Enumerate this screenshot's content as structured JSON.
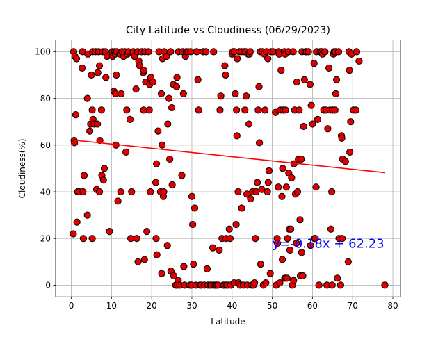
{
  "colors": {
    "marker_fill": "#e00000",
    "marker_edge": "#000000",
    "regression": "#ff0000",
    "equation": "#0000ff",
    "grid": "#b0b0b0"
  },
  "chart_data": {
    "type": "scatter",
    "title": "City Latitude vs Cloudiness (06/29/2023)",
    "xlabel": "Latitude",
    "ylabel": "Cloudiness(%)",
    "xlim": [
      -3.9,
      81.9
    ],
    "ylim": [
      -5,
      105
    ],
    "xticks": [
      0,
      10,
      20,
      30,
      40,
      50,
      60,
      70,
      80
    ],
    "yticks": [
      0,
      20,
      40,
      60,
      80,
      100
    ],
    "grid": true,
    "regression": {
      "slope": -0.18,
      "intercept": 62.23,
      "x_range": [
        0.5,
        78
      ],
      "equation_text": "y=-0.18x + 62.23",
      "label_position": [
        50,
        16
      ]
    },
    "points": [
      [
        0.5,
        22
      ],
      [
        0.6,
        100
      ],
      [
        0.7,
        62
      ],
      [
        0.8,
        61
      ],
      [
        0.9,
        98
      ],
      [
        1.1,
        73
      ],
      [
        1.3,
        97
      ],
      [
        1.4,
        27
      ],
      [
        1.6,
        40
      ],
      [
        2.0,
        40
      ],
      [
        2.7,
        93
      ],
      [
        2.8,
        100
      ],
      [
        2.9,
        40
      ],
      [
        3.0,
        20
      ],
      [
        3.2,
        47
      ],
      [
        4.0,
        30
      ],
      [
        4.0,
        80
      ],
      [
        4.1,
        99
      ],
      [
        4.6,
        66
      ],
      [
        4.8,
        69
      ],
      [
        5.0,
        90
      ],
      [
        5.2,
        75
      ],
      [
        5.2,
        20
      ],
      [
        5.3,
        100
      ],
      [
        5.4,
        71
      ],
      [
        5.7,
        69
      ],
      [
        6.0,
        100
      ],
      [
        6.3,
        41
      ],
      [
        6.5,
        69
      ],
      [
        6.6,
        91
      ],
      [
        6.8,
        100
      ],
      [
        7.0,
        94
      ],
      [
        7.0,
        40
      ],
      [
        7.1,
        62
      ],
      [
        7.5,
        75
      ],
      [
        7.6,
        47
      ],
      [
        7.8,
        100
      ],
      [
        8.0,
        45
      ],
      [
        8.2,
        50
      ],
      [
        8.5,
        100
      ],
      [
        8.6,
        89
      ],
      [
        8.9,
        98
      ],
      [
        9.5,
        23
      ],
      [
        10.2,
        100
      ],
      [
        10.3,
        98
      ],
      [
        10.6,
        83
      ],
      [
        10.8,
        100
      ],
      [
        10.9,
        99
      ],
      [
        11.0,
        82
      ],
      [
        11.1,
        60
      ],
      [
        11.2,
        90
      ],
      [
        11.3,
        100
      ],
      [
        11.6,
        36
      ],
      [
        12.1,
        99
      ],
      [
        12.3,
        40
      ],
      [
        12.4,
        82
      ],
      [
        12.6,
        100
      ],
      [
        13.0,
        98
      ],
      [
        13.3,
        100
      ],
      [
        13.6,
        57
      ],
      [
        13.8,
        75
      ],
      [
        14.0,
        99
      ],
      [
        14.2,
        100
      ],
      [
        14.6,
        71
      ],
      [
        14.8,
        20
      ],
      [
        15.0,
        40
      ],
      [
        15.4,
        100
      ],
      [
        15.7,
        98
      ],
      [
        16.1,
        84
      ],
      [
        16.3,
        20
      ],
      [
        16.5,
        100
      ],
      [
        16.6,
        10
      ],
      [
        16.8,
        96
      ],
      [
        17.0,
        94
      ],
      [
        17.5,
        100
      ],
      [
        17.9,
        91
      ],
      [
        18.0,
        92
      ],
      [
        18.0,
        75
      ],
      [
        18.2,
        11
      ],
      [
        18.3,
        100
      ],
      [
        18.5,
        87
      ],
      [
        18.8,
        23
      ],
      [
        19.2,
        100
      ],
      [
        19.4,
        75
      ],
      [
        19.5,
        86
      ],
      [
        19.7,
        40
      ],
      [
        19.8,
        89
      ],
      [
        20.3,
        87
      ],
      [
        21.0,
        44
      ],
      [
        21.1,
        20
      ],
      [
        21.2,
        52
      ],
      [
        21.3,
        13
      ],
      [
        21.6,
        66
      ],
      [
        21.8,
        100
      ],
      [
        22.2,
        40
      ],
      [
        22.4,
        82
      ],
      [
        22.5,
        5
      ],
      [
        22.6,
        60
      ],
      [
        22.7,
        97
      ],
      [
        22.9,
        38
      ],
      [
        23.0,
        40
      ],
      [
        23.1,
        100
      ],
      [
        23.7,
        98
      ],
      [
        23.9,
        17
      ],
      [
        24.0,
        69
      ],
      [
        24.3,
        80
      ],
      [
        24.5,
        54
      ],
      [
        24.7,
        100
      ],
      [
        24.8,
        6
      ],
      [
        25.0,
        76
      ],
      [
        25.1,
        43
      ],
      [
        25.4,
        86
      ],
      [
        25.5,
        4
      ],
      [
        26.0,
        0
      ],
      [
        26.2,
        85
      ],
      [
        26.3,
        89
      ],
      [
        26.4,
        0
      ],
      [
        26.6,
        2
      ],
      [
        26.7,
        100
      ],
      [
        27.0,
        0
      ],
      [
        27.5,
        47
      ],
      [
        27.7,
        100
      ],
      [
        27.9,
        82
      ],
      [
        28.0,
        8
      ],
      [
        28.2,
        0
      ],
      [
        28.4,
        98
      ],
      [
        28.6,
        100
      ],
      [
        29.0,
        100
      ],
      [
        29.5,
        0
      ],
      [
        29.7,
        100
      ],
      [
        29.9,
        0
      ],
      [
        30.0,
        38
      ],
      [
        30.2,
        26
      ],
      [
        30.4,
        9
      ],
      [
        30.7,
        33
      ],
      [
        31.0,
        0
      ],
      [
        31.2,
        100
      ],
      [
        31.5,
        88
      ],
      [
        31.7,
        75
      ],
      [
        32.0,
        0
      ],
      [
        32.3,
        0
      ],
      [
        32.8,
        100
      ],
      [
        33.1,
        0
      ],
      [
        33.5,
        100
      ],
      [
        33.8,
        7
      ],
      [
        34.0,
        0
      ],
      [
        34.6,
        0
      ],
      [
        34.8,
        0
      ],
      [
        35.2,
        16
      ],
      [
        35.4,
        100
      ],
      [
        35.5,
        0
      ],
      [
        35.8,
        0
      ],
      [
        36.2,
        0
      ],
      [
        36.5,
        0
      ],
      [
        36.8,
        15
      ],
      [
        37.0,
        75
      ],
      [
        37.2,
        81
      ],
      [
        37.5,
        20
      ],
      [
        37.8,
        0
      ],
      [
        38.0,
        0
      ],
      [
        38.2,
        94
      ],
      [
        38.4,
        90
      ],
      [
        38.5,
        20
      ],
      [
        38.6,
        0
      ],
      [
        38.9,
        0
      ],
      [
        39.3,
        24
      ],
      [
        39.5,
        20
      ],
      [
        39.7,
        0
      ],
      [
        40.0,
        99
      ],
      [
        40.2,
        100
      ],
      [
        40.5,
        1
      ],
      [
        40.6,
        100
      ],
      [
        40.8,
        82
      ],
      [
        41.0,
        26
      ],
      [
        41.1,
        75
      ],
      [
        41.2,
        64
      ],
      [
        41.3,
        97
      ],
      [
        41.5,
        40
      ],
      [
        41.6,
        1
      ],
      [
        41.8,
        100
      ],
      [
        42.0,
        0
      ],
      [
        42.3,
        100
      ],
      [
        42.4,
        33
      ],
      [
        42.8,
        0
      ],
      [
        43.0,
        100
      ],
      [
        43.2,
        75
      ],
      [
        43.4,
        100
      ],
      [
        43.5,
        81
      ],
      [
        43.7,
        39
      ],
      [
        43.8,
        0
      ],
      [
        44.0,
        99
      ],
      [
        44.2,
        69
      ],
      [
        44.3,
        99
      ],
      [
        44.5,
        100
      ],
      [
        44.6,
        37
      ],
      [
        44.9,
        0
      ],
      [
        45.1,
        40
      ],
      [
        45.3,
        0
      ],
      [
        45.6,
        1
      ],
      [
        45.8,
        20
      ],
      [
        46.0,
        40
      ],
      [
        46.3,
        44
      ],
      [
        46.5,
        75
      ],
      [
        46.7,
        85
      ],
      [
        46.8,
        61
      ],
      [
        47.0,
        100
      ],
      [
        47.1,
        9
      ],
      [
        47.4,
        41
      ],
      [
        47.5,
        100
      ],
      [
        47.8,
        0
      ],
      [
        48.0,
        99
      ],
      [
        48.2,
        75
      ],
      [
        48.4,
        1
      ],
      [
        48.6,
        100
      ],
      [
        48.8,
        40
      ],
      [
        48.9,
        97
      ],
      [
        49.0,
        44
      ],
      [
        49.2,
        49
      ],
      [
        49.5,
        5
      ],
      [
        49.7,
        100
      ],
      [
        50.2,
        100
      ],
      [
        50.8,
        74
      ],
      [
        51.0,
        0
      ],
      [
        51.2,
        20
      ],
      [
        51.3,
        18
      ],
      [
        51.5,
        42
      ],
      [
        51.6,
        100
      ],
      [
        51.7,
        99
      ],
      [
        51.9,
        1
      ],
      [
        52.0,
        75
      ],
      [
        52.2,
        92
      ],
      [
        52.4,
        38
      ],
      [
        52.5,
        11
      ],
      [
        52.6,
        50
      ],
      [
        52.7,
        75
      ],
      [
        53.0,
        100
      ],
      [
        53.1,
        3
      ],
      [
        53.2,
        99
      ],
      [
        53.3,
        75
      ],
      [
        53.4,
        3
      ],
      [
        53.5,
        42
      ],
      [
        53.7,
        3
      ],
      [
        53.8,
        20
      ],
      [
        54.0,
        100
      ],
      [
        54.1,
        48
      ],
      [
        54.2,
        24
      ],
      [
        54.4,
        15
      ],
      [
        54.6,
        24
      ],
      [
        54.8,
        46
      ],
      [
        55.0,
        0
      ],
      [
        55.2,
        100
      ],
      [
        55.3,
        2
      ],
      [
        55.4,
        52
      ],
      [
        55.6,
        75
      ],
      [
        55.8,
        39
      ],
      [
        56.0,
        18
      ],
      [
        56.1,
        87
      ],
      [
        56.3,
        40
      ],
      [
        56.5,
        54
      ],
      [
        56.7,
        75
      ],
      [
        56.9,
        28
      ],
      [
        57.0,
        4
      ],
      [
        57.2,
        54
      ],
      [
        57.3,
        14
      ],
      [
        57.4,
        100
      ],
      [
        57.6,
        4
      ],
      [
        57.8,
        68
      ],
      [
        58.0,
        88
      ],
      [
        58.3,
        100
      ],
      [
        58.5,
        100
      ],
      [
        59.0,
        100
      ],
      [
        59.4,
        86
      ],
      [
        59.5,
        17
      ],
      [
        59.7,
        77
      ],
      [
        60.0,
        69
      ],
      [
        60.4,
        95
      ],
      [
        60.5,
        20
      ],
      [
        60.7,
        20
      ],
      [
        60.9,
        42
      ],
      [
        61.0,
        100
      ],
      [
        61.3,
        71
      ],
      [
        61.6,
        0
      ],
      [
        61.9,
        100
      ],
      [
        62.3,
        100
      ],
      [
        62.5,
        99
      ],
      [
        62.8,
        75
      ],
      [
        63.1,
        100
      ],
      [
        63.4,
        75
      ],
      [
        63.6,
        0
      ],
      [
        63.8,
        67
      ],
      [
        64.1,
        93
      ],
      [
        64.4,
        75
      ],
      [
        64.6,
        24
      ],
      [
        64.8,
        40
      ],
      [
        64.9,
        0
      ],
      [
        65.0,
        75
      ],
      [
        65.2,
        99
      ],
      [
        65.4,
        100
      ],
      [
        65.6,
        75
      ],
      [
        65.7,
        100
      ],
      [
        65.8,
        82
      ],
      [
        66.0,
        88
      ],
      [
        66.2,
        3
      ],
      [
        66.5,
        100
      ],
      [
        66.6,
        20
      ],
      [
        67.0,
        0
      ],
      [
        67.2,
        64
      ],
      [
        67.3,
        63
      ],
      [
        67.4,
        20
      ],
      [
        67.5,
        54
      ],
      [
        68.2,
        53
      ],
      [
        68.9,
        10
      ],
      [
        69.1,
        100
      ],
      [
        69.2,
        92
      ],
      [
        69.3,
        57
      ],
      [
        69.5,
        70
      ],
      [
        69.7,
        99
      ],
      [
        70.2,
        75
      ],
      [
        70.8,
        75
      ],
      [
        71.0,
        100
      ],
      [
        71.6,
        96
      ],
      [
        78.0,
        0
      ]
    ]
  }
}
